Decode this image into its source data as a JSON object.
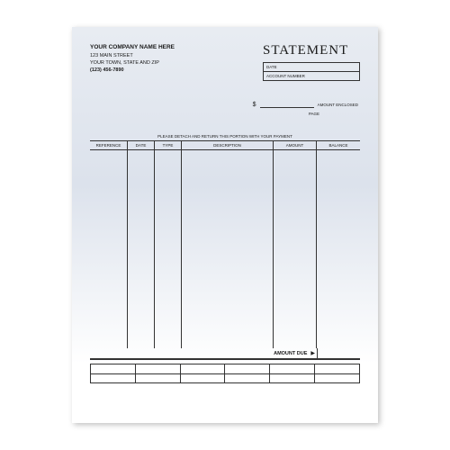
{
  "company": {
    "name": "YOUR COMPANY NAME HERE",
    "line1": "123 MAIN STREET",
    "line2": "YOUR TOWN, STATE AND ZIP",
    "phone": "(123) 456-7890"
  },
  "title": "STATEMENT",
  "infoBoxes": {
    "date": "DATE",
    "account": "ACCOUNT NUMBER"
  },
  "amountEnclosed": {
    "dollar": "$",
    "label": "AMOUNT ENCLOSED"
  },
  "pageLabel": "PAGE",
  "detachText": "PLEASE DETACH AND RETURN THIS PORTION WITH YOUR PAYMENT",
  "columns": {
    "ref": "REFERENCE",
    "date": "DATE",
    "type": "TYPE",
    "desc": "DESCRIPTION",
    "amt": "AMOUNT",
    "bal": "BALANCE"
  },
  "amountDue": {
    "label": "AMOUNT DUE",
    "arrow": "▶"
  },
  "style": {
    "page_bg_top": "#e8ecf2",
    "page_bg_mid": "#dce2ec",
    "page_bg_bottom": "#ffffff",
    "border_color": "#333333",
    "text_color": "#1a1a1a",
    "title_font": "Times New Roman",
    "body_font": "Arial",
    "footer_cols": 6,
    "footer_rows": 2
  }
}
